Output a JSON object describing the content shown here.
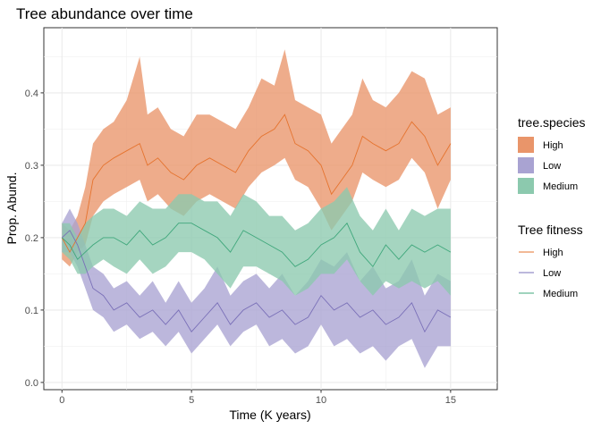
{
  "chart_data": {
    "type": "area",
    "title": "Tree abundance over time",
    "xlabel": "Time (K years)",
    "ylabel": "Prop. Abund.",
    "xlim": [
      -0.7,
      16.8
    ],
    "ylim": [
      -0.01,
      0.49
    ],
    "x_ticks": [
      0,
      5,
      10,
      15
    ],
    "x_tick_labels": [
      "0",
      "5",
      "10",
      "15"
    ],
    "y_ticks": [
      0.0,
      0.1,
      0.2,
      0.3,
      0.4
    ],
    "y_tick_labels": [
      "0.0",
      "0.1",
      "0.2",
      "0.3",
      "0.4"
    ],
    "grid": true,
    "legend_position": "right",
    "legend_fill_title": "tree.species",
    "legend_line_title": "Tree fitness",
    "series": [
      {
        "name": "High",
        "fill_color": "#E9956A",
        "line_color": "#E5732E",
        "x": [
          0,
          0.3,
          0.6,
          0.9,
          1.2,
          1.6,
          2.0,
          2.5,
          3.0,
          3.3,
          3.7,
          4.2,
          4.7,
          5.2,
          5.7,
          6.2,
          6.7,
          7.2,
          7.7,
          8.2,
          8.6,
          9.0,
          9.5,
          10.0,
          10.4,
          10.8,
          11.2,
          11.6,
          12.0,
          12.5,
          13.0,
          13.5,
          14.0,
          14.5,
          15.0
        ],
        "mean": [
          0.2,
          0.18,
          0.2,
          0.22,
          0.28,
          0.3,
          0.31,
          0.32,
          0.33,
          0.3,
          0.31,
          0.29,
          0.28,
          0.3,
          0.31,
          0.3,
          0.29,
          0.32,
          0.34,
          0.35,
          0.37,
          0.33,
          0.32,
          0.3,
          0.26,
          0.28,
          0.3,
          0.34,
          0.33,
          0.32,
          0.33,
          0.36,
          0.34,
          0.3,
          0.33
        ],
        "lower": [
          0.17,
          0.16,
          0.18,
          0.19,
          0.23,
          0.25,
          0.26,
          0.27,
          0.28,
          0.25,
          0.26,
          0.24,
          0.23,
          0.25,
          0.26,
          0.25,
          0.24,
          0.27,
          0.29,
          0.3,
          0.31,
          0.28,
          0.27,
          0.24,
          0.21,
          0.23,
          0.25,
          0.29,
          0.28,
          0.27,
          0.28,
          0.31,
          0.29,
          0.24,
          0.28
        ],
        "upper": [
          0.22,
          0.21,
          0.23,
          0.27,
          0.33,
          0.35,
          0.36,
          0.39,
          0.45,
          0.37,
          0.38,
          0.35,
          0.34,
          0.37,
          0.37,
          0.36,
          0.35,
          0.38,
          0.42,
          0.41,
          0.46,
          0.39,
          0.38,
          0.37,
          0.33,
          0.35,
          0.37,
          0.42,
          0.39,
          0.38,
          0.4,
          0.43,
          0.42,
          0.37,
          0.38
        ]
      },
      {
        "name": "Low",
        "fill_color": "#A9A3D2",
        "line_color": "#7A70B8",
        "x": [
          0,
          0.3,
          0.6,
          0.9,
          1.2,
          1.6,
          2.0,
          2.5,
          3.0,
          3.5,
          4.0,
          4.5,
          5.0,
          5.5,
          6.0,
          6.5,
          7.0,
          7.5,
          8.0,
          8.5,
          9.0,
          9.5,
          10.0,
          10.5,
          11.0,
          11.5,
          12.0,
          12.5,
          13.0,
          13.5,
          14.0,
          14.5,
          15.0
        ],
        "mean": [
          0.2,
          0.21,
          0.19,
          0.16,
          0.13,
          0.12,
          0.1,
          0.11,
          0.09,
          0.1,
          0.08,
          0.1,
          0.07,
          0.09,
          0.11,
          0.08,
          0.1,
          0.11,
          0.09,
          0.1,
          0.08,
          0.09,
          0.12,
          0.1,
          0.11,
          0.09,
          0.1,
          0.08,
          0.09,
          0.11,
          0.07,
          0.1,
          0.09
        ],
        "lower": [
          0.18,
          0.18,
          0.16,
          0.13,
          0.1,
          0.09,
          0.07,
          0.08,
          0.06,
          0.07,
          0.05,
          0.07,
          0.04,
          0.06,
          0.08,
          0.05,
          0.07,
          0.08,
          0.05,
          0.06,
          0.04,
          0.05,
          0.08,
          0.05,
          0.06,
          0.04,
          0.05,
          0.03,
          0.05,
          0.06,
          0.02,
          0.05,
          0.05
        ],
        "upper": [
          0.22,
          0.24,
          0.22,
          0.19,
          0.16,
          0.15,
          0.13,
          0.14,
          0.12,
          0.14,
          0.11,
          0.14,
          0.11,
          0.13,
          0.16,
          0.12,
          0.14,
          0.15,
          0.13,
          0.15,
          0.12,
          0.14,
          0.17,
          0.16,
          0.18,
          0.14,
          0.16,
          0.13,
          0.14,
          0.17,
          0.12,
          0.15,
          0.14
        ]
      },
      {
        "name": "Medium",
        "fill_color": "#8CC9AE",
        "line_color": "#3FA77B",
        "x": [
          0,
          0.3,
          0.6,
          0.9,
          1.2,
          1.6,
          2.0,
          2.5,
          3.0,
          3.5,
          4.0,
          4.5,
          5.0,
          5.5,
          6.0,
          6.5,
          7.0,
          7.5,
          8.0,
          8.5,
          9.0,
          9.5,
          10.0,
          10.5,
          11.0,
          11.5,
          12.0,
          12.5,
          13.0,
          13.5,
          14.0,
          14.5,
          15.0
        ],
        "mean": [
          0.2,
          0.19,
          0.17,
          0.18,
          0.19,
          0.2,
          0.2,
          0.19,
          0.21,
          0.19,
          0.2,
          0.22,
          0.22,
          0.21,
          0.2,
          0.18,
          0.21,
          0.2,
          0.19,
          0.18,
          0.16,
          0.17,
          0.19,
          0.2,
          0.22,
          0.18,
          0.16,
          0.19,
          0.17,
          0.19,
          0.18,
          0.19,
          0.18
        ],
        "lower": [
          0.18,
          0.17,
          0.15,
          0.15,
          0.16,
          0.17,
          0.16,
          0.15,
          0.17,
          0.15,
          0.16,
          0.18,
          0.18,
          0.17,
          0.15,
          0.13,
          0.16,
          0.16,
          0.15,
          0.14,
          0.12,
          0.13,
          0.15,
          0.15,
          0.17,
          0.14,
          0.12,
          0.14,
          0.13,
          0.14,
          0.13,
          0.14,
          0.12
        ],
        "upper": [
          0.22,
          0.22,
          0.2,
          0.22,
          0.23,
          0.24,
          0.24,
          0.23,
          0.25,
          0.24,
          0.24,
          0.26,
          0.26,
          0.25,
          0.25,
          0.23,
          0.26,
          0.25,
          0.23,
          0.23,
          0.21,
          0.22,
          0.24,
          0.25,
          0.27,
          0.23,
          0.21,
          0.24,
          0.21,
          0.24,
          0.23,
          0.24,
          0.24
        ]
      }
    ]
  }
}
